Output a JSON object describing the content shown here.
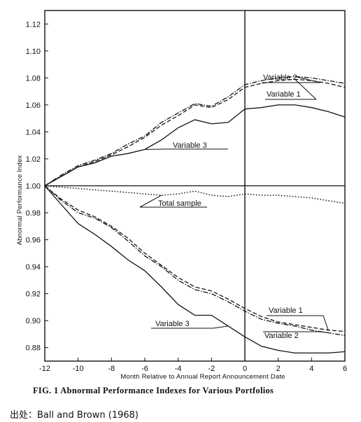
{
  "chart_data": {
    "type": "line",
    "ylabel": "Abnormal Performance Index",
    "xlabel": "Month Relative to Annual Report Announcement Date",
    "xlim": [
      -12,
      6
    ],
    "ylim": [
      0.87,
      1.13
    ],
    "x_ticks": [
      -12,
      -10,
      -8,
      -6,
      -4,
      -2,
      0,
      2,
      4,
      6
    ],
    "y_ticks": [
      0.88,
      0.9,
      0.92,
      0.94,
      0.96,
      0.98,
      1.0,
      1.02,
      1.04,
      1.06,
      1.08,
      1.1,
      1.12
    ],
    "y_tick_labels": [
      "0.88",
      "0.90",
      "0.92",
      "0.94",
      "0.96",
      "0.98",
      "1.00",
      "1.02",
      "1.04",
      "1.06",
      "1.08",
      "1.10",
      "1.12"
    ],
    "x": [
      -12,
      -11,
      -10,
      -9,
      -8,
      -7,
      -6,
      -5,
      -4,
      -3,
      -2,
      -1,
      0,
      1,
      2,
      3,
      4,
      5,
      6
    ],
    "series": [
      {
        "name": "Variable 2",
        "group": "upper",
        "style": "dash-dot",
        "values": [
          1.0,
          1.008,
          1.015,
          1.019,
          1.024,
          1.031,
          1.037,
          1.047,
          1.054,
          1.061,
          1.059,
          1.066,
          1.075,
          1.078,
          1.08,
          1.081,
          1.08,
          1.078,
          1.076
        ]
      },
      {
        "name": "Variable 1",
        "group": "upper",
        "style": "dashed",
        "values": [
          1.0,
          1.007,
          1.014,
          1.018,
          1.023,
          1.029,
          1.036,
          1.045,
          1.052,
          1.06,
          1.058,
          1.064,
          1.073,
          1.076,
          1.078,
          1.079,
          1.078,
          1.076,
          1.073
        ]
      },
      {
        "name": "Variable 3",
        "group": "upper",
        "style": "solid",
        "values": [
          1.0,
          1.007,
          1.014,
          1.017,
          1.022,
          1.024,
          1.027,
          1.034,
          1.043,
          1.049,
          1.046,
          1.047,
          1.057,
          1.058,
          1.06,
          1.06,
          1.058,
          1.055,
          1.051
        ]
      },
      {
        "name": "Total sample",
        "group": "middle",
        "style": "dotted",
        "values": [
          1.0,
          0.999,
          0.998,
          0.997,
          0.996,
          0.995,
          0.994,
          0.993,
          0.994,
          0.996,
          0.993,
          0.992,
          0.994,
          0.993,
          0.993,
          0.992,
          0.991,
          0.989,
          0.987
        ]
      },
      {
        "name": "Variable 1",
        "group": "lower",
        "style": "dashed",
        "values": [
          1.0,
          0.99,
          0.982,
          0.977,
          0.97,
          0.961,
          0.95,
          0.941,
          0.932,
          0.925,
          0.922,
          0.916,
          0.909,
          0.903,
          0.899,
          0.897,
          0.895,
          0.893,
          0.892
        ]
      },
      {
        "name": "Variable 2",
        "group": "lower",
        "style": "dash-dot",
        "values": [
          1.0,
          0.989,
          0.98,
          0.976,
          0.969,
          0.959,
          0.948,
          0.94,
          0.93,
          0.923,
          0.92,
          0.914,
          0.907,
          0.901,
          0.898,
          0.896,
          0.893,
          0.891,
          0.889
        ]
      },
      {
        "name": "Variable 3",
        "group": "lower",
        "style": "solid",
        "values": [
          1.0,
          0.986,
          0.972,
          0.964,
          0.955,
          0.945,
          0.937,
          0.925,
          0.912,
          0.904,
          0.904,
          0.896,
          0.888,
          0.881,
          0.878,
          0.876,
          0.876,
          0.876,
          0.877
        ]
      }
    ],
    "annotations": [
      {
        "text": "Variable 2",
        "series": 0
      },
      {
        "text": "Variable 1",
        "series": 1
      },
      {
        "text": "Variable 3",
        "series": 2
      },
      {
        "text": "Total sample",
        "series": 3
      },
      {
        "text": "Variable 1",
        "series": 4
      },
      {
        "text": "Variable 2",
        "series": 5
      },
      {
        "text": "Variable 3",
        "series": 6
      }
    ],
    "reference_lines": {
      "horizontal_y": 1.0,
      "vertical_x": 0
    },
    "grid": false
  },
  "caption": "FIG. 1 Abnormal Performance Indexes for Various Portfolios",
  "source": "出处：Ball and Brown (1968)"
}
